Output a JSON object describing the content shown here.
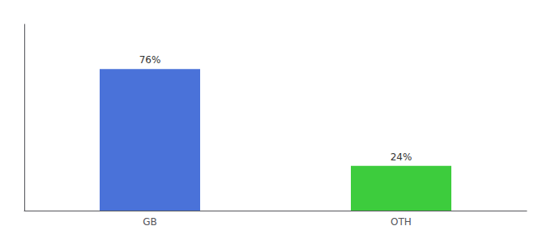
{
  "chart_data": {
    "type": "bar",
    "categories": [
      "GB",
      "OTH"
    ],
    "values": [
      76,
      24
    ],
    "value_labels": [
      "76%",
      "24%"
    ],
    "colors": [
      "#4a72d9",
      "#3dcc3d"
    ],
    "ylim": [
      0,
      100
    ],
    "grid": false,
    "data_labels": true,
    "tick_labels": "x"
  }
}
